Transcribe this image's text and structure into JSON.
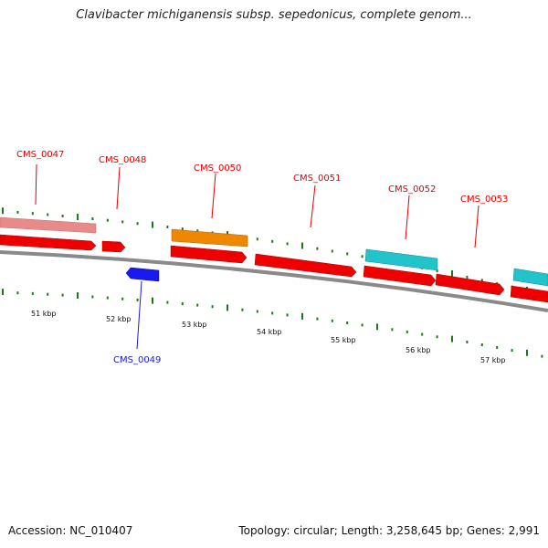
{
  "title": "Clavibacter michiganensis subsp. sepedonicus, complete genom...",
  "footer": {
    "accession": "Accession: NC_010407",
    "summary": "Topology: circular; Length: 3,258,645 bp; Genes: 2,991"
  },
  "colors": {
    "feature_red": "#ee0000",
    "feature_pink": "#e88a8a",
    "feature_orange": "#ee8800",
    "feature_cyan": "#22c4cc",
    "feature_blue": "#1a1aee",
    "label_red": "#dd0000",
    "label_blue": "#1a1acc",
    "tick_green": "#1a7a1a",
    "backbone": "#8a8a8a"
  },
  "kbp_labels": [
    "51 kbp",
    "52 kbp",
    "53 kbp",
    "54 kbp",
    "55 kbp",
    "56 kbp",
    "57 kbp"
  ],
  "gene_labels": [
    {
      "name": "CMS_0047",
      "color": "red"
    },
    {
      "name": "CMS_0048",
      "color": "red"
    },
    {
      "name": "CMS_0050",
      "color": "red"
    },
    {
      "name": "CMS_0051",
      "color": "red"
    },
    {
      "name": "CMS_0052",
      "color": "red"
    },
    {
      "name": "CMS_0053",
      "color": "red"
    },
    {
      "name": "CMS_0049",
      "color": "blue"
    }
  ]
}
